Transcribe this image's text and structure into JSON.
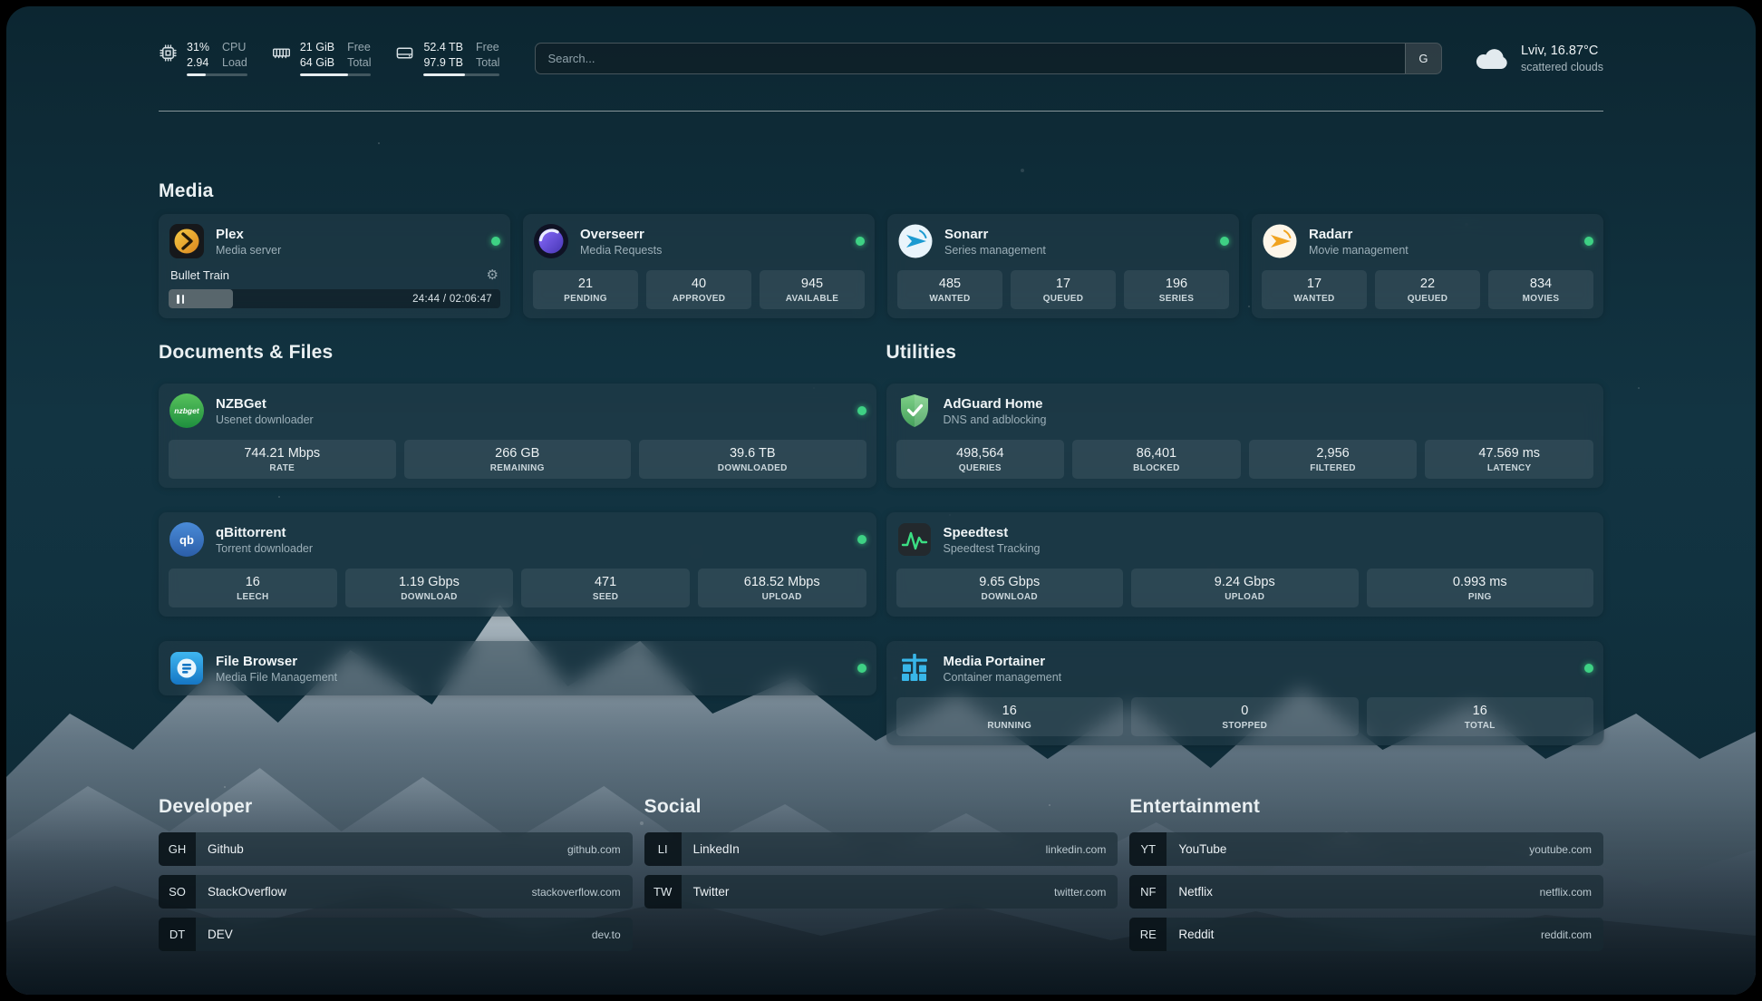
{
  "header": {
    "widgets": [
      {
        "icon": "cpu-icon",
        "values": [
          "31%",
          "2.94"
        ],
        "labels": [
          "CPU",
          "Load"
        ],
        "progress": "31%"
      },
      {
        "icon": "memory-icon",
        "values": [
          "21 GiB",
          "64 GiB"
        ],
        "labels": [
          "Free",
          "Total"
        ],
        "progress": "67%"
      },
      {
        "icon": "disk-icon",
        "values": [
          "52.4 TB",
          "97.9 TB"
        ],
        "labels": [
          "Free",
          "Total"
        ],
        "progress": "54%"
      }
    ],
    "search": {
      "placeholder": "Search...",
      "button_label": "G"
    },
    "weather": {
      "location": "Lviv, 16.87°C",
      "condition": "scattered clouds"
    }
  },
  "sections": {
    "media": {
      "title": "Media",
      "cards": [
        {
          "name": "Plex",
          "subtitle": "Media server",
          "status": "online",
          "now_playing": {
            "title": "Bullet Train",
            "time": "24:44 / 02:06:47",
            "progress": "19.5%"
          }
        },
        {
          "name": "Overseerr",
          "subtitle": "Media Requests",
          "status": "online",
          "stats": [
            {
              "value": "21",
              "label": "PENDING"
            },
            {
              "value": "40",
              "label": "APPROVED"
            },
            {
              "value": "945",
              "label": "AVAILABLE"
            }
          ]
        },
        {
          "name": "Sonarr",
          "subtitle": "Series management",
          "status": "online",
          "stats": [
            {
              "value": "485",
              "label": "WANTED"
            },
            {
              "value": "17",
              "label": "QUEUED"
            },
            {
              "value": "196",
              "label": "SERIES"
            }
          ]
        },
        {
          "name": "Radarr",
          "subtitle": "Movie management",
          "status": "online",
          "stats": [
            {
              "value": "17",
              "label": "WANTED"
            },
            {
              "value": "22",
              "label": "QUEUED"
            },
            {
              "value": "834",
              "label": "MOVIES"
            }
          ]
        }
      ]
    },
    "documents": {
      "title": "Documents & Files",
      "cards": [
        {
          "name": "NZBGet",
          "subtitle": "Usenet downloader",
          "status": "online",
          "stats": [
            {
              "value": "744.21 Mbps",
              "label": "RATE"
            },
            {
              "value": "266 GB",
              "label": "REMAINING"
            },
            {
              "value": "39.6 TB",
              "label": "DOWNLOADED"
            }
          ]
        },
        {
          "name": "qBittorrent",
          "subtitle": "Torrent downloader",
          "status": "online",
          "stats": [
            {
              "value": "16",
              "label": "LEECH"
            },
            {
              "value": "1.19 Gbps",
              "label": "DOWNLOAD"
            },
            {
              "value": "471",
              "label": "SEED"
            },
            {
              "value": "618.52 Mbps",
              "label": "UPLOAD"
            }
          ]
        },
        {
          "name": "File Browser",
          "subtitle": "Media File Management",
          "status": "online"
        }
      ]
    },
    "utilities": {
      "title": "Utilities",
      "cards": [
        {
          "name": "AdGuard Home",
          "subtitle": "DNS and adblocking",
          "stats": [
            {
              "value": "498,564",
              "label": "QUERIES"
            },
            {
              "value": "86,401",
              "label": "BLOCKED"
            },
            {
              "value": "2,956",
              "label": "FILTERED"
            },
            {
              "value": "47.569 ms",
              "label": "LATENCY"
            }
          ]
        },
        {
          "name": "Speedtest",
          "subtitle": "Speedtest Tracking",
          "stats": [
            {
              "value": "9.65 Gbps",
              "label": "DOWNLOAD"
            },
            {
              "value": "9.24 Gbps",
              "label": "UPLOAD"
            },
            {
              "value": "0.993 ms",
              "label": "PING"
            }
          ]
        },
        {
          "name": "Media Portainer",
          "subtitle": "Container management",
          "status": "online",
          "stats": [
            {
              "value": "16",
              "label": "RUNNING"
            },
            {
              "value": "0",
              "label": "STOPPED"
            },
            {
              "value": "16",
              "label": "TOTAL"
            }
          ]
        }
      ]
    },
    "bookmarks": [
      {
        "title": "Developer",
        "items": [
          {
            "abbr": "GH",
            "name": "Github",
            "domain": "github.com"
          },
          {
            "abbr": "SO",
            "name": "StackOverflow",
            "domain": "stackoverflow.com"
          },
          {
            "abbr": "DT",
            "name": "DEV",
            "domain": "dev.to"
          }
        ]
      },
      {
        "title": "Social",
        "items": [
          {
            "abbr": "LI",
            "name": "LinkedIn",
            "domain": "linkedin.com"
          },
          {
            "abbr": "TW",
            "name": "Twitter",
            "domain": "twitter.com"
          }
        ]
      },
      {
        "title": "Entertainment",
        "items": [
          {
            "abbr": "YT",
            "name": "YouTube",
            "domain": "youtube.com"
          },
          {
            "abbr": "NF",
            "name": "Netflix",
            "domain": "netflix.com"
          },
          {
            "abbr": "RE",
            "name": "Reddit",
            "domain": "reddit.com"
          }
        ]
      }
    ]
  }
}
